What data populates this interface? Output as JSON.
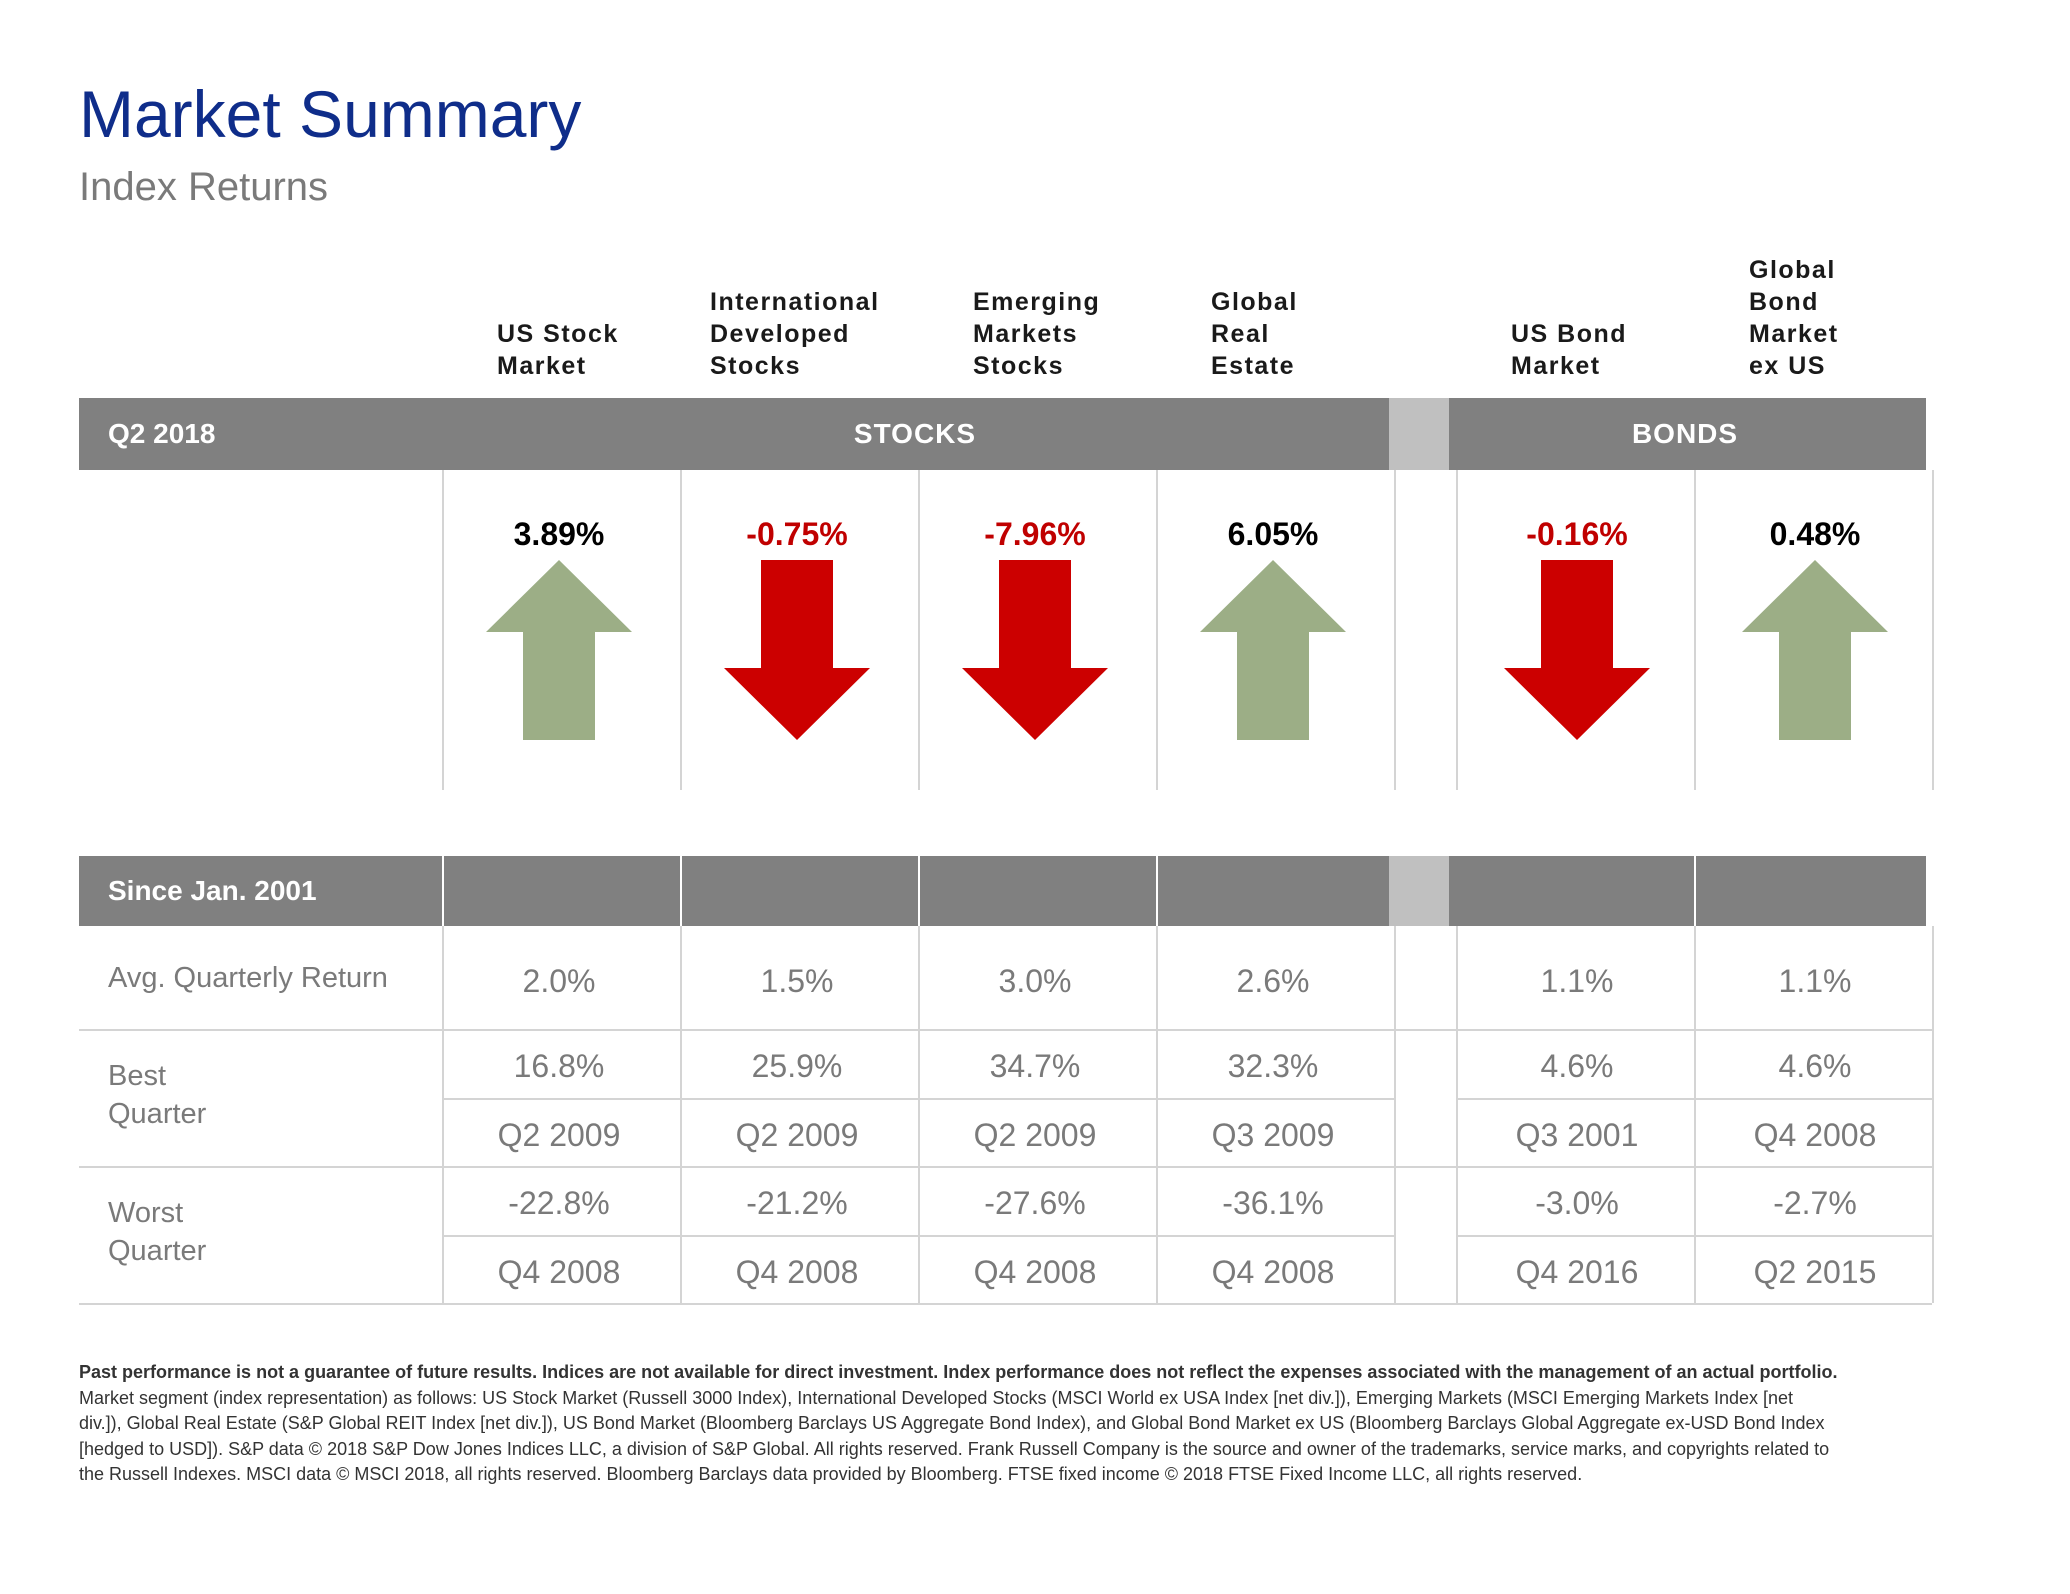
{
  "header": {
    "title": "Market Summary",
    "subtitle": "Index Returns"
  },
  "columns": [
    {
      "lines": [
        "US Stock",
        "Market"
      ]
    },
    {
      "lines": [
        "International",
        "Developed",
        "Stocks"
      ]
    },
    {
      "lines": [
        "Emerging",
        "Markets",
        "Stocks"
      ]
    },
    {
      "lines": [
        "Global",
        "Real",
        "Estate"
      ]
    },
    {
      "lines": [
        "US Bond",
        "Market"
      ]
    },
    {
      "lines": [
        "Global",
        "Bond",
        "Market",
        "ex US"
      ]
    }
  ],
  "quarter_band": {
    "period_label": "Q2 2018",
    "stocks_label": "STOCKS",
    "bonds_label": "BONDS"
  },
  "quarter_returns": [
    {
      "value": "3.89%",
      "direction": "up"
    },
    {
      "value": "-0.75%",
      "direction": "down"
    },
    {
      "value": "-7.96%",
      "direction": "down"
    },
    {
      "value": "6.05%",
      "direction": "up"
    },
    {
      "value": "-0.16%",
      "direction": "down"
    },
    {
      "value": "0.48%",
      "direction": "up"
    }
  ],
  "colors": {
    "title": "#0f2d8a",
    "positive_text": "#000000",
    "negative_text": "#c00000",
    "up_arrow": "#9cae86",
    "down_arrow": "#cc0000",
    "band": "#808080",
    "band_gap": "#c0c0c0"
  },
  "since_band": {
    "label": "Since Jan. 2001"
  },
  "since_table": {
    "avg_label": "Avg. Quarterly Return",
    "best_label": [
      "Best",
      "Quarter"
    ],
    "worst_label": [
      "Worst",
      "Quarter"
    ],
    "avg": [
      "2.0%",
      "1.5%",
      "3.0%",
      "2.6%",
      "1.1%",
      "1.1%"
    ],
    "best_value": [
      "16.8%",
      "25.9%",
      "34.7%",
      "32.3%",
      "4.6%",
      "4.6%"
    ],
    "best_quarter": [
      "Q2 2009",
      "Q2 2009",
      "Q2 2009",
      "Q3 2009",
      "Q3 2001",
      "Q4 2008"
    ],
    "worst_value": [
      "-22.8%",
      "-21.2%",
      "-27.6%",
      "-36.1%",
      "-3.0%",
      "-2.7%"
    ],
    "worst_quarter": [
      "Q4 2008",
      "Q4 2008",
      "Q4 2008",
      "Q4 2008",
      "Q4 2016",
      "Q2 2015"
    ]
  },
  "footer": {
    "disclaimer": "Past performance is not a guarantee of future results. Indices are not available for direct investment. Index performance does not reflect the expenses associated with the management of an actual portfolio.",
    "details": "Market segment (index representation) as follows: US Stock Market (Russell 3000 Index), International Developed Stocks (MSCI World ex USA Index [net div.]), Emerging Markets (MSCI Emerging Markets Index [net div.]), Global Real Estate (S&P Global REIT Index [net div.]), US Bond Market (Bloomberg Barclays US Aggregate Bond Index), and Global Bond Market ex US (Bloomberg Barclays Global Aggregate ex-USD Bond Index [hedged to USD]). S&P data © 2018 S&P Dow Jones Indices LLC, a division of S&P Global. All rights reserved. Frank Russell Company is the source and owner of the trademarks, service marks, and copyrights related to the Russell Indexes. MSCI data © MSCI 2018, all rights reserved. Bloomberg Barclays data provided by Bloomberg. FTSE fixed income © 2018 FTSE Fixed Income LLC, all rights reserved."
  }
}
